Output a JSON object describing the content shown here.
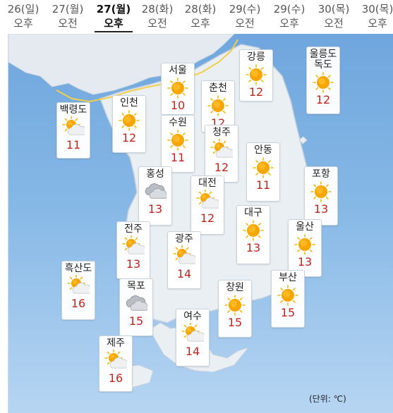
{
  "tabs": [
    {
      "date": "26(일)",
      "period": "오후",
      "selected": false
    },
    {
      "date": "27(월)",
      "period": "오전",
      "selected": false
    },
    {
      "date": "27(월)",
      "period": "오후",
      "selected": true
    },
    {
      "date": "28(화)",
      "period": "오전",
      "selected": false
    },
    {
      "date": "28(화)",
      "period": "오후",
      "selected": false
    },
    {
      "date": "29(수)",
      "period": "오전",
      "selected": false
    },
    {
      "date": "29(수)",
      "period": "오후",
      "selected": false
    },
    {
      "date": "30(목)",
      "period": "오전",
      "selected": false
    },
    {
      "date": "30(목)",
      "period": "오후",
      "selected": false
    }
  ],
  "cities": [
    {
      "name": "서울",
      "temp": "10",
      "weather": "sun-icon"
    },
    {
      "name": "춘천",
      "temp": "12",
      "weather": "sun-icon"
    },
    {
      "name": "강릉",
      "temp": "12",
      "weather": "sun-icon"
    },
    {
      "name": "울릉도\n독도",
      "temp": "12",
      "weather": "sun-icon"
    },
    {
      "name": "백령도",
      "temp": "11",
      "weather": "partly-cloudy-icon"
    },
    {
      "name": "인천",
      "temp": "12",
      "weather": "sun-icon"
    },
    {
      "name": "수원",
      "temp": "11",
      "weather": "sun-icon"
    },
    {
      "name": "청주",
      "temp": "12",
      "weather": "partly-cloudy-icon"
    },
    {
      "name": "안동",
      "temp": "11",
      "weather": "sun-icon"
    },
    {
      "name": "홍성",
      "temp": "13",
      "weather": "cloudy-icon"
    },
    {
      "name": "대전",
      "temp": "12",
      "weather": "partly-cloudy-icon"
    },
    {
      "name": "포항",
      "temp": "13",
      "weather": "sun-icon"
    },
    {
      "name": "대구",
      "temp": "13",
      "weather": "sun-icon"
    },
    {
      "name": "전주",
      "temp": "13",
      "weather": "partly-cloudy-icon"
    },
    {
      "name": "울산",
      "temp": "13",
      "weather": "sun-icon"
    },
    {
      "name": "광주",
      "temp": "14",
      "weather": "partly-cloudy-icon"
    },
    {
      "name": "흑산도",
      "temp": "16",
      "weather": "partly-cloudy-icon"
    },
    {
      "name": "목포",
      "temp": "15",
      "weather": "cloudy-icon"
    },
    {
      "name": "창원",
      "temp": "15",
      "weather": "sun-icon"
    },
    {
      "name": "부산",
      "temp": "15",
      "weather": "sun-icon"
    },
    {
      "name": "여수",
      "temp": "14",
      "weather": "partly-cloudy-icon"
    },
    {
      "name": "제주",
      "temp": "16",
      "weather": "partly-cloudy-icon"
    }
  ],
  "unit_label": "(단위: ℃)",
  "colors": {
    "temp": "#c0251d",
    "sea": "#7fb2e4",
    "land": "#e9eef3",
    "border_line": "#f2cf4a",
    "sun": "#f5a300"
  }
}
